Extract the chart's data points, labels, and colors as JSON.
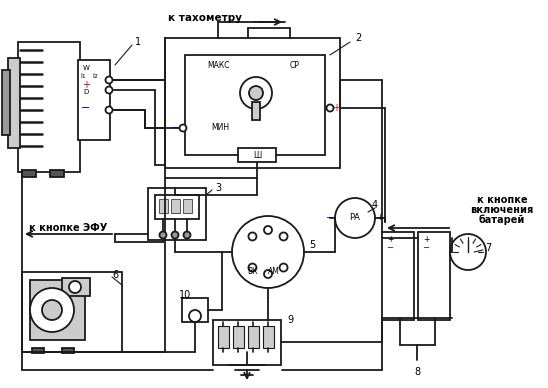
{
  "bg_color": "#ffffff",
  "line_color": "#1a1a1a",
  "red_color": "#dd0000",
  "blue_color": "#0000cc",
  "gray_light": "#cccccc",
  "gray_med": "#999999",
  "gray_dark": "#555555",
  "fig_width": 5.48,
  "fig_height": 3.88,
  "dpi": 100,
  "label_k_takhometru": "к тахометру",
  "label_k_knopke_efu": "к кнопке ЭФУ",
  "label_k_knopke_vkl1": "к кнопке",
  "label_k_knopke_vkl2": "включения",
  "label_k_knopke_vkl3": "батарей",
  "label_maks": "МАКС",
  "label_sr": "СР",
  "label_min": "МИН",
  "label_sh": "Ш",
  "label_w": "W",
  "label_sh1": "Ĩ1",
  "label_sh2": "Ĩ2",
  "label_d": "D",
  "label_vk": "ВК",
  "label_am": "АМ",
  "label_pa": "РА",
  "n1": "1",
  "n2": "2",
  "n3": "3",
  "n4": "4",
  "n5": "5",
  "n6": "6",
  "n7": "7",
  "n8": "8",
  "n9": "9",
  "n10": "10"
}
